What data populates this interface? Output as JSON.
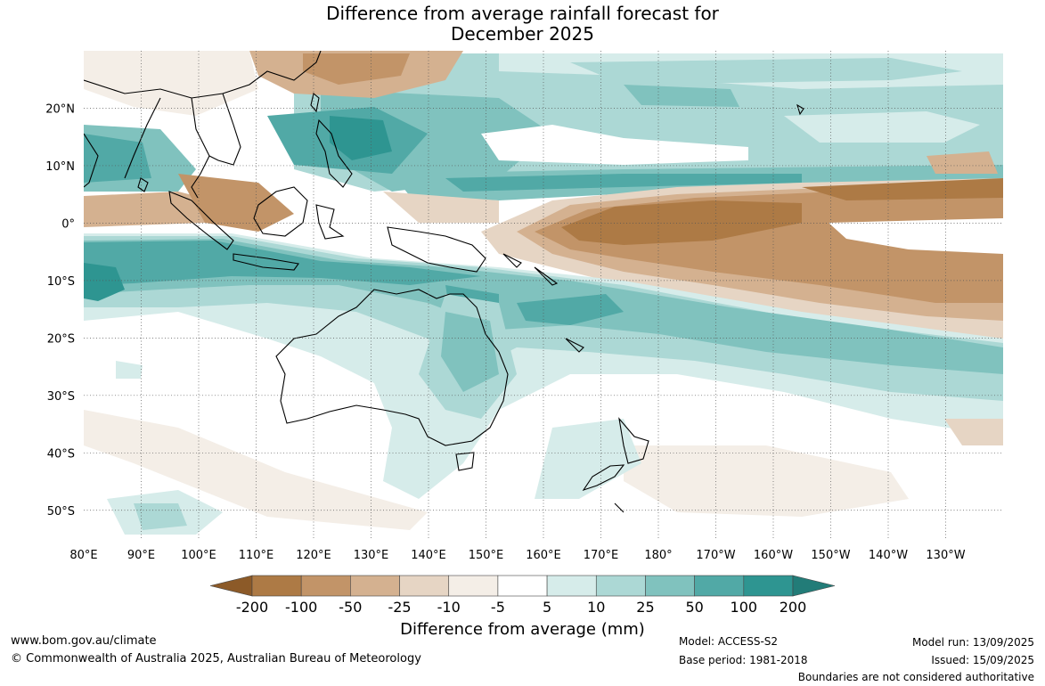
{
  "title": {
    "line1": "Difference from average rainfall forecast for",
    "line2": "December 2025"
  },
  "map": {
    "lat_labels": [
      "20°N",
      "10°N",
      "0°",
      "10°S",
      "20°S",
      "30°S",
      "40°S",
      "50°S"
    ],
    "lon_labels": [
      "80°E",
      "90°E",
      "100°E",
      "110°E",
      "120°E",
      "130°E",
      "140°E",
      "150°E",
      "160°E",
      "170°E",
      "180°",
      "170°W",
      "160°W",
      "150°W",
      "140°W",
      "130°W"
    ],
    "lat_range": [
      -55,
      30
    ],
    "lon_range": [
      80,
      240
    ]
  },
  "colorbar": {
    "labels": [
      "-200",
      "-100",
      "-50",
      "-25",
      "-10",
      "-5",
      "5",
      "10",
      "25",
      "50",
      "100",
      "200"
    ],
    "colors": [
      "#8c5a28",
      "#ad7a45",
      "#c29468",
      "#d4b190",
      "#e6d5c4",
      "#f4eee7",
      "#ffffff",
      "#d6ecea",
      "#acd8d5",
      "#80c2be",
      "#51a9a6",
      "#2e9591",
      "#227c78"
    ],
    "title": "Difference from average (mm)"
  },
  "footer": {
    "website": "www.bom.gov.au/climate",
    "copyright": "© Commonwealth of Australia 2025, Australian Bureau of Meteorology",
    "model": "Model: ACCESS-S2",
    "base_period": "Base period: 1981-2018",
    "model_run": "Model run: 13/09/2025",
    "issued": "Issued: 15/09/2025",
    "disclaimer": "Boundaries are not considered authoritative"
  }
}
